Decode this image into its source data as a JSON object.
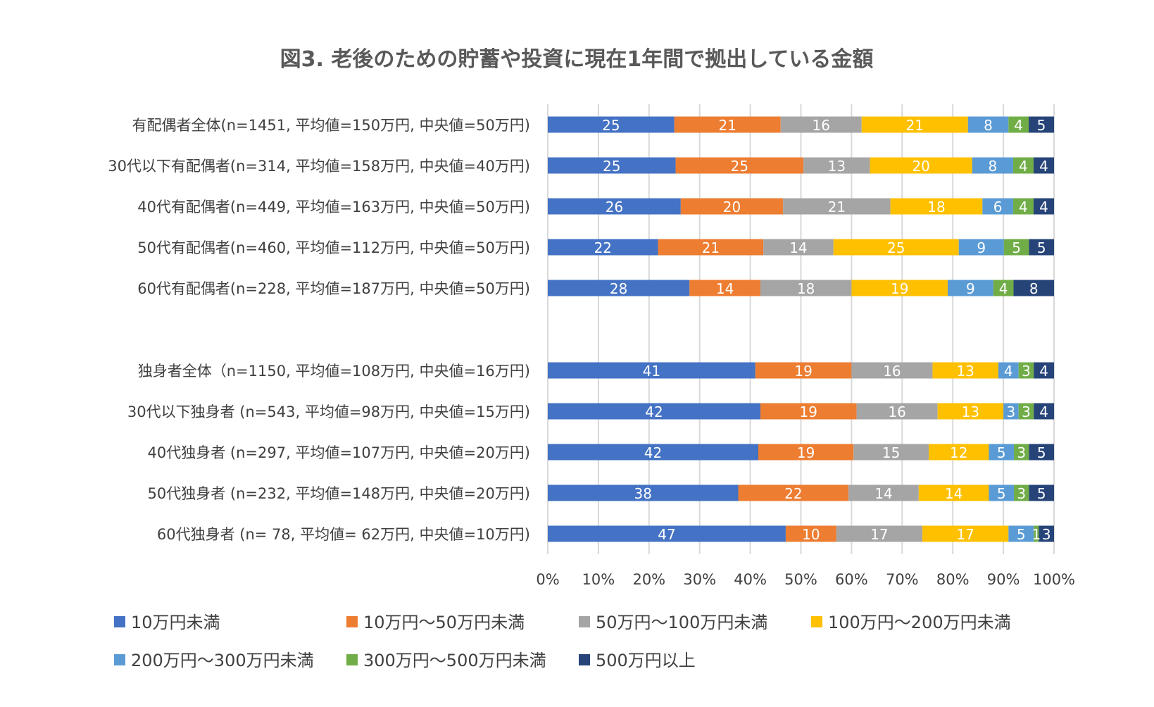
{
  "chart_data": {
    "type": "bar",
    "orientation": "horizontal",
    "stacked": "percent",
    "title": "図3. 老後のための貯蓄や投資に現在1年間で拠出している金額",
    "categories": [
      "有配偶者全体(n=1451, 平均値=150万円, 中央値=50万円)",
      "30代以下有配偶者(n=314, 平均値=158万円, 中央値=40万円)",
      "40代有配偶者(n=449, 平均値=163万円, 中央値=50万円)",
      "50代有配偶者(n=460, 平均値=112万円, 中央値=50万円)",
      "60代有配偶者(n=228, 平均値=187万円, 中央値=50万円)",
      "",
      "独身者全体（n=1150, 平均値=108万円, 中央値=16万円)",
      "30代以下独身者 (n=543, 平均値=98万円, 中央値=15万円)",
      "40代独身者 (n=297, 平均値=107万円, 中央値=20万円)",
      "50代独身者 (n=232, 平均値=148万円, 中央値=20万円)",
      "60代独身者 (n= 78, 平均値= 62万円, 中央値=10万円)"
    ],
    "series": [
      {
        "name": "10万円未満",
        "color": "#4472c4",
        "values": [
          25,
          25,
          26,
          22,
          28,
          null,
          41,
          42,
          42,
          38,
          47
        ]
      },
      {
        "name": "10万円～50万円未満",
        "color": "#ed7d31",
        "values": [
          21,
          25,
          20,
          21,
          14,
          null,
          19,
          19,
          19,
          22,
          10
        ]
      },
      {
        "name": "50万円～100万円未満",
        "color": "#a5a5a5",
        "values": [
          16,
          13,
          21,
          14,
          18,
          null,
          16,
          16,
          15,
          14,
          17
        ]
      },
      {
        "name": "100万円～200万円未満",
        "color": "#ffc000",
        "values": [
          21,
          20,
          18,
          25,
          19,
          null,
          13,
          13,
          12,
          14,
          17
        ]
      },
      {
        "name": "200万円～300万円未満",
        "color": "#5b9bd5",
        "values": [
          8,
          8,
          6,
          9,
          9,
          null,
          4,
          3,
          5,
          5,
          5
        ]
      },
      {
        "name": "300万円～500万円未満",
        "color": "#70ad47",
        "values": [
          4,
          4,
          4,
          5,
          4,
          null,
          3,
          3,
          3,
          3,
          1
        ]
      },
      {
        "name": "500万円以上",
        "color": "#264478",
        "values": [
          5,
          4,
          4,
          5,
          8,
          null,
          4,
          4,
          5,
          5,
          3
        ]
      }
    ],
    "xlim": [
      0,
      100
    ],
    "xticks": [
      "0%",
      "10%",
      "20%",
      "30%",
      "40%",
      "50%",
      "60%",
      "70%",
      "80%",
      "90%",
      "100%"
    ],
    "grid": "vertical",
    "legend": "bottom"
  }
}
